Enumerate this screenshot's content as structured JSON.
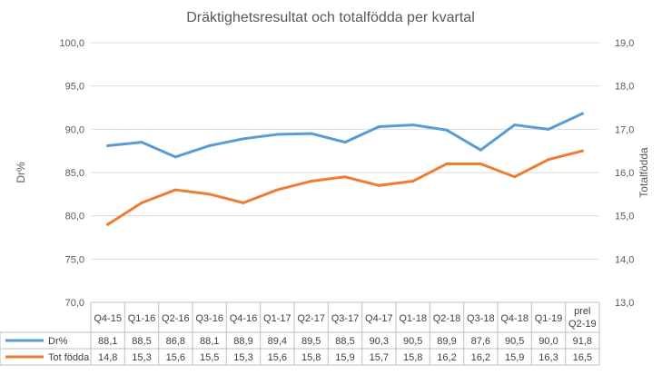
{
  "chart_data": {
    "type": "line",
    "title": "Dräktighetsresultat och totalfödda per kvartal",
    "ylabel": "Dr%",
    "y2label": "Totalfödda",
    "ylim": [
      70,
      100
    ],
    "y2lim": [
      13,
      19
    ],
    "yticks": [
      "70,0",
      "75,0",
      "80,0",
      "85,0",
      "90,0",
      "95,0",
      "100,0"
    ],
    "y2ticks": [
      "13,0",
      "14,0",
      "15,0",
      "16,0",
      "17,0",
      "18,0",
      "19,0"
    ],
    "categories": [
      "Q4-15",
      "Q1-16",
      "Q2-16",
      "Q3-16",
      "Q4-16",
      "Q1-17",
      "Q2-17",
      "Q3-17",
      "Q4-17",
      "Q1-18",
      "Q2-18",
      "Q3-18",
      "Q4-18",
      "Q1-19",
      "prel Q2-19"
    ],
    "series": [
      {
        "name": "Dr%",
        "axis": "left",
        "color": "#5B9BD5",
        "values": [
          88.1,
          88.5,
          86.8,
          88.1,
          88.9,
          89.4,
          89.5,
          88.5,
          90.3,
          90.5,
          89.9,
          87.6,
          90.5,
          90.0,
          91.8
        ],
        "labels": [
          "88,1",
          "88,5",
          "86,8",
          "88,1",
          "88,9",
          "89,4",
          "89,5",
          "88,5",
          "90,3",
          "90,5",
          "89,9",
          "87,6",
          "90,5",
          "90,0",
          "91,8"
        ]
      },
      {
        "name": "Tot födda",
        "axis": "right",
        "color": "#ED7D31",
        "values": [
          14.8,
          15.3,
          15.6,
          15.5,
          15.3,
          15.6,
          15.8,
          15.9,
          15.7,
          15.8,
          16.2,
          16.2,
          15.9,
          16.3,
          16.5
        ],
        "labels": [
          "14,8",
          "15,3",
          "15,6",
          "15,5",
          "15,3",
          "15,6",
          "15,8",
          "15,9",
          "15,7",
          "15,8",
          "16,2",
          "16,2",
          "15,9",
          "16,3",
          "16,5"
        ]
      }
    ],
    "grid": true,
    "legend": "data-table"
  }
}
